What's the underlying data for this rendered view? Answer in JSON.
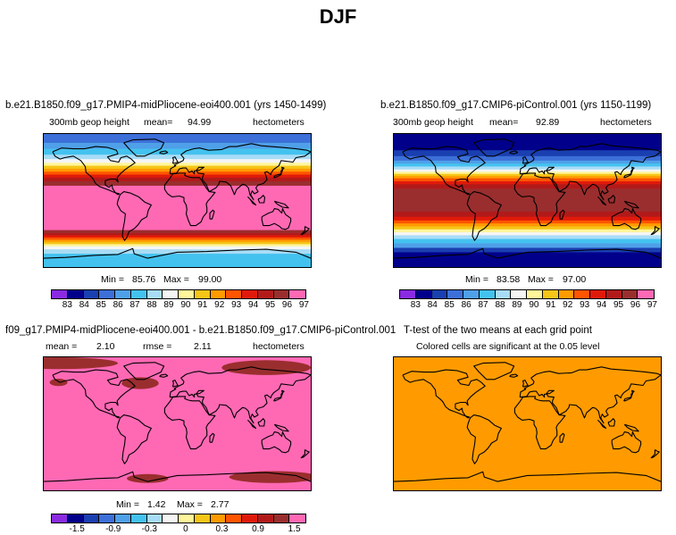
{
  "page_title": "DJF",
  "colormap_colors": [
    "#8a2be2",
    "#00008b",
    "#1a3fb0",
    "#3c6fd8",
    "#4fa0e8",
    "#44c2ef",
    "#a8dcf6",
    "#f5f5f5",
    "#fff59a",
    "#f5c518",
    "#ff9b00",
    "#ff5500",
    "#e01a0a",
    "#b21a1a",
    "#9a2e2e",
    "#ff69b4"
  ],
  "chart_data": [
    {
      "type": "heatmap",
      "id": "panel1",
      "title": "b.e21.B1850.f09_g17.PMIP4-midPliocene-eoi400.001 (yrs 1450-1499)",
      "variable": "300mb geop height",
      "stat_label": "mean=",
      "stat_value": "94.99",
      "units": "hectometers",
      "min_label": "Min =",
      "min_value": "85.76",
      "max_label": "Max =",
      "max_value": "99.00",
      "colorbar_ticks": [
        "83",
        "84",
        "85",
        "86",
        "87",
        "88",
        "89",
        "90",
        "91",
        "92",
        "93",
        "94",
        "95",
        "96",
        "97"
      ],
      "zonal_bands": [
        {
          "lat_top": 90,
          "lat_bottom": 78,
          "level": 3
        },
        {
          "lat_top": 78,
          "lat_bottom": 70,
          "level": 4
        },
        {
          "lat_top": 70,
          "lat_bottom": 62,
          "level": 5
        },
        {
          "lat_top": 62,
          "lat_bottom": 56,
          "level": 6
        },
        {
          "lat_top": 56,
          "lat_bottom": 51,
          "level": 7
        },
        {
          "lat_top": 51,
          "lat_bottom": 47,
          "level": 8
        },
        {
          "lat_top": 47,
          "lat_bottom": 43,
          "level": 9
        },
        {
          "lat_top": 43,
          "lat_bottom": 39,
          "level": 10
        },
        {
          "lat_top": 39,
          "lat_bottom": 35,
          "level": 11
        },
        {
          "lat_top": 35,
          "lat_bottom": 31,
          "level": 12
        },
        {
          "lat_top": 31,
          "lat_bottom": 26,
          "level": 13
        },
        {
          "lat_top": 26,
          "lat_bottom": 20,
          "level": 14
        },
        {
          "lat_top": 20,
          "lat_bottom": -40,
          "level": 15
        },
        {
          "lat_top": -40,
          "lat_bottom": -44,
          "level": 14
        },
        {
          "lat_top": -44,
          "lat_bottom": -47,
          "level": 13
        },
        {
          "lat_top": -47,
          "lat_bottom": -50,
          "level": 12
        },
        {
          "lat_top": -50,
          "lat_bottom": -53,
          "level": 11
        },
        {
          "lat_top": -53,
          "lat_bottom": -56,
          "level": 10
        },
        {
          "lat_top": -56,
          "lat_bottom": -59,
          "level": 9
        },
        {
          "lat_top": -59,
          "lat_bottom": -62,
          "level": 8
        },
        {
          "lat_top": -62,
          "lat_bottom": -66,
          "level": 7
        },
        {
          "lat_top": -66,
          "lat_bottom": -72,
          "level": 6
        },
        {
          "lat_top": -72,
          "lat_bottom": -90,
          "level": 5
        }
      ]
    },
    {
      "type": "heatmap",
      "id": "panel2",
      "title": "b.e21.B1850.f09_g17.CMIP6-piControl.001 (yrs 1150-1199)",
      "variable": "300mb geop height",
      "stat_label": "mean=",
      "stat_value": "92.89",
      "units": "hectometers",
      "min_label": "Min =",
      "min_value": "83.58",
      "max_label": "Max =",
      "max_value": "97.00",
      "colorbar_ticks": [
        "83",
        "84",
        "85",
        "86",
        "87",
        "88",
        "89",
        "90",
        "91",
        "92",
        "93",
        "94",
        "95",
        "96",
        "97"
      ],
      "zonal_bands": [
        {
          "lat_top": 90,
          "lat_bottom": 68,
          "level": 1
        },
        {
          "lat_top": 68,
          "lat_bottom": 60,
          "level": 2
        },
        {
          "lat_top": 60,
          "lat_bottom": 54,
          "level": 3
        },
        {
          "lat_top": 54,
          "lat_bottom": 50,
          "level": 4
        },
        {
          "lat_top": 50,
          "lat_bottom": 46,
          "level": 5
        },
        {
          "lat_top": 46,
          "lat_bottom": 42,
          "level": 6
        },
        {
          "lat_top": 42,
          "lat_bottom": 39,
          "level": 7
        },
        {
          "lat_top": 39,
          "lat_bottom": 36,
          "level": 8
        },
        {
          "lat_top": 36,
          "lat_bottom": 33,
          "level": 9
        },
        {
          "lat_top": 33,
          "lat_bottom": 30,
          "level": 10
        },
        {
          "lat_top": 30,
          "lat_bottom": 26,
          "level": 11
        },
        {
          "lat_top": 26,
          "lat_bottom": 22,
          "level": 12
        },
        {
          "lat_top": 22,
          "lat_bottom": 16,
          "level": 13
        },
        {
          "lat_top": 16,
          "lat_bottom": -15,
          "level": 14
        },
        {
          "lat_top": -15,
          "lat_bottom": -22,
          "level": 13
        },
        {
          "lat_top": -22,
          "lat_bottom": -27,
          "level": 12
        },
        {
          "lat_top": -27,
          "lat_bottom": -31,
          "level": 11
        },
        {
          "lat_top": -31,
          "lat_bottom": -35,
          "level": 10
        },
        {
          "lat_top": -35,
          "lat_bottom": -39,
          "level": 9
        },
        {
          "lat_top": -39,
          "lat_bottom": -43,
          "level": 8
        },
        {
          "lat_top": -43,
          "lat_bottom": -47,
          "level": 7
        },
        {
          "lat_top": -47,
          "lat_bottom": -52,
          "level": 6
        },
        {
          "lat_top": -52,
          "lat_bottom": -58,
          "level": 5
        },
        {
          "lat_top": -58,
          "lat_bottom": -64,
          "level": 4
        },
        {
          "lat_top": -64,
          "lat_bottom": -70,
          "level": 2
        },
        {
          "lat_top": -70,
          "lat_bottom": -90,
          "level": 1
        }
      ]
    },
    {
      "type": "heatmap",
      "id": "panel3",
      "title": "f09_g17.PMIP4-midPliocene-eoi400.001 - b.e21.B1850.f09_g17.CMIP6-piControl.001",
      "stat_label": "mean =",
      "stat_value": "2.10",
      "rmse_label": "rmse =",
      "rmse_value": "2.11",
      "units": "hectometers",
      "min_label": "Min =",
      "min_value": "1.42",
      "max_label": "Max =",
      "max_value": "2.77",
      "colorbar_ticks": [
        "-1.5",
        "-0.9",
        "-0.3",
        "0",
        "0.3",
        "0.9",
        "1.5"
      ],
      "background_level": 15,
      "patch_level": 14,
      "patch_regions": [
        {
          "lon": -160,
          "lat": 82,
          "rlon": 80,
          "rlat": 8
        },
        {
          "lon": 120,
          "lat": 76,
          "rlon": 60,
          "rlat": 10
        },
        {
          "lon": -50,
          "lat": 55,
          "rlon": 25,
          "rlat": 8
        },
        {
          "lon": -160,
          "lat": 56,
          "rlon": 12,
          "rlat": 5
        },
        {
          "lon": 130,
          "lat": -72,
          "rlon": 60,
          "rlat": 8
        },
        {
          "lon": -40,
          "lat": -74,
          "rlon": 28,
          "rlat": 6
        }
      ]
    },
    {
      "type": "heatmap",
      "id": "panel4",
      "title": "T-test of the two means at each grid point",
      "subtitle": "Colored cells are significant at the 0.05 level",
      "fill_level": 10
    }
  ]
}
